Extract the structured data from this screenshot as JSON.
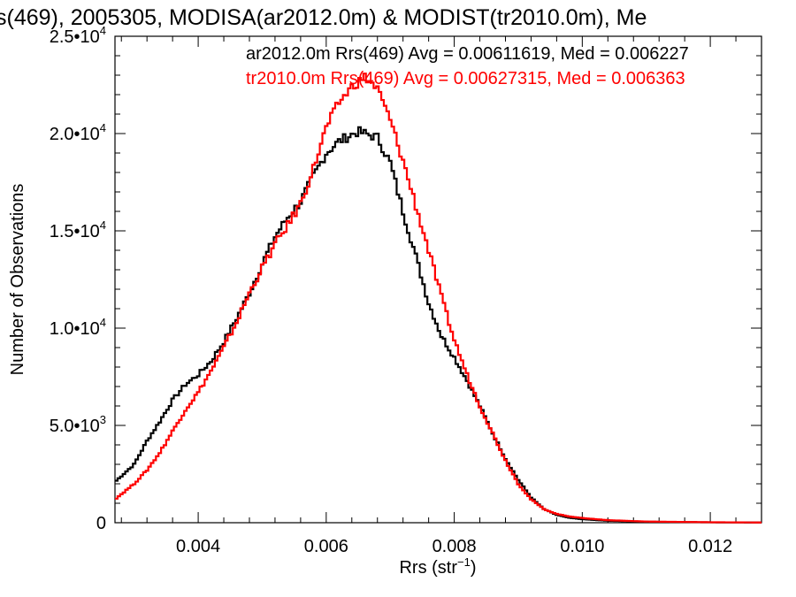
{
  "chart_data": {
    "type": "line",
    "title": "s(469), 2005305, MODISA(ar2012.0m) & MODIST(tr2010.0m), Me",
    "xlabel_main": "Rrs (str",
    "xlabel_exp": "−1",
    "xlabel_close": ")",
    "ylabel": "Number of Observations",
    "xlim": [
      0.0027,
      0.0128
    ],
    "ylim": [
      0,
      25000
    ],
    "x_ticks": [
      {
        "value": 0.004,
        "label": "0.004"
      },
      {
        "value": 0.006,
        "label": "0.006"
      },
      {
        "value": 0.008,
        "label": "0.008"
      },
      {
        "value": 0.01,
        "label": "0.010"
      },
      {
        "value": 0.012,
        "label": "0.012"
      }
    ],
    "y_ticks": [
      {
        "value": 0,
        "mantissa": "0",
        "exp": ""
      },
      {
        "value": 5000,
        "mantissa": "5.0•10",
        "exp": "3"
      },
      {
        "value": 10000,
        "mantissa": "1.0•10",
        "exp": "4"
      },
      {
        "value": 15000,
        "mantissa": "1.5•10",
        "exp": "4"
      },
      {
        "value": 20000,
        "mantissa": "2.0•10",
        "exp": "4"
      },
      {
        "value": 25000,
        "mantissa": "2.5•10",
        "exp": "4"
      }
    ],
    "grid": false,
    "series": [
      {
        "name": "ar2012.0m Rrs(469) Avg = 0.00611619, Med = 0.006227",
        "color": "#000000",
        "points": [
          [
            0.0027,
            2100
          ],
          [
            0.003,
            3000
          ],
          [
            0.0032,
            4200
          ],
          [
            0.0034,
            5200
          ],
          [
            0.0036,
            6300
          ],
          [
            0.0038,
            7100
          ],
          [
            0.004,
            7600
          ],
          [
            0.0042,
            8300
          ],
          [
            0.0044,
            9300
          ],
          [
            0.0046,
            10500
          ],
          [
            0.0048,
            11800
          ],
          [
            0.005,
            13300
          ],
          [
            0.0052,
            14700
          ],
          [
            0.0054,
            15700
          ],
          [
            0.0056,
            16500
          ],
          [
            0.0058,
            17800
          ],
          [
            0.006,
            19000
          ],
          [
            0.0062,
            19600
          ],
          [
            0.0064,
            19950
          ],
          [
            0.0065,
            20100
          ],
          [
            0.0066,
            20000
          ],
          [
            0.0068,
            19800
          ],
          [
            0.007,
            18500
          ],
          [
            0.0072,
            16000
          ],
          [
            0.0074,
            13700
          ],
          [
            0.0076,
            11300
          ],
          [
            0.0078,
            9600
          ],
          [
            0.008,
            8500
          ],
          [
            0.0082,
            7300
          ],
          [
            0.0084,
            6000
          ],
          [
            0.0086,
            4600
          ],
          [
            0.0088,
            3300
          ],
          [
            0.009,
            2200
          ],
          [
            0.0092,
            1300
          ],
          [
            0.0094,
            700
          ],
          [
            0.0096,
            400
          ],
          [
            0.0098,
            250
          ],
          [
            0.01,
            180
          ],
          [
            0.0104,
            100
          ],
          [
            0.011,
            50
          ],
          [
            0.012,
            20
          ],
          [
            0.0128,
            10
          ]
        ]
      },
      {
        "name": "tr2010.0m Rrs(469) Avg = 0.00627315, Med = 0.006363",
        "color": "#ff0000",
        "points": [
          [
            0.0027,
            1200
          ],
          [
            0.003,
            2000
          ],
          [
            0.0032,
            2700
          ],
          [
            0.0034,
            3600
          ],
          [
            0.0036,
            4700
          ],
          [
            0.0038,
            5800
          ],
          [
            0.004,
            6700
          ],
          [
            0.0042,
            7800
          ],
          [
            0.0044,
            9000
          ],
          [
            0.0046,
            10300
          ],
          [
            0.0048,
            11800
          ],
          [
            0.005,
            13100
          ],
          [
            0.0052,
            14300
          ],
          [
            0.0054,
            15300
          ],
          [
            0.0056,
            16400
          ],
          [
            0.0058,
            18200
          ],
          [
            0.006,
            20300
          ],
          [
            0.0062,
            21600
          ],
          [
            0.0064,
            22400
          ],
          [
            0.0066,
            22900
          ],
          [
            0.0068,
            22300
          ],
          [
            0.007,
            20700
          ],
          [
            0.0072,
            18600
          ],
          [
            0.0074,
            16300
          ],
          [
            0.0076,
            14000
          ],
          [
            0.0078,
            11600
          ],
          [
            0.008,
            9400
          ],
          [
            0.0082,
            7600
          ],
          [
            0.0084,
            6000
          ],
          [
            0.0086,
            4600
          ],
          [
            0.0088,
            3200
          ],
          [
            0.009,
            2000
          ],
          [
            0.0092,
            1200
          ],
          [
            0.0094,
            700
          ],
          [
            0.0096,
            450
          ],
          [
            0.0098,
            320
          ],
          [
            0.01,
            240
          ],
          [
            0.0104,
            130
          ],
          [
            0.011,
            60
          ],
          [
            0.012,
            25
          ],
          [
            0.0128,
            10
          ]
        ]
      }
    ]
  }
}
